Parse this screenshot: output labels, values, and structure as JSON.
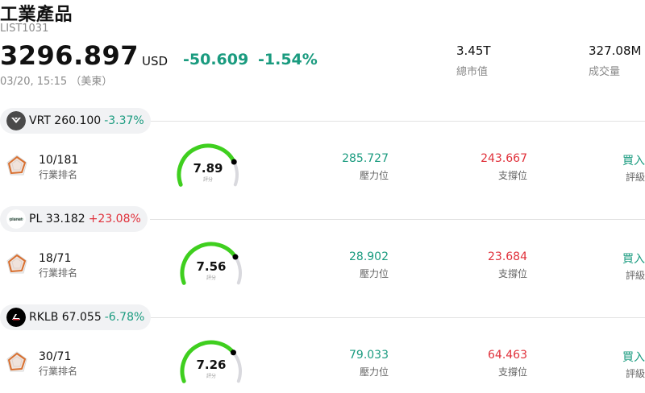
{
  "header": {
    "title": "工業產品",
    "code": "LIST1031",
    "price": "3296.897",
    "currency": "USD",
    "change": "-50.609",
    "change_pct": "-1.54%",
    "timestamp": "03/20, 15:15 （美東）",
    "market_cap_value": "3.45T",
    "market_cap_label": "總市值",
    "volume_value": "327.08M",
    "volume_label": "成交量"
  },
  "colors": {
    "down": "#1a9b7f",
    "up": "#e0303a",
    "gauge_fill": "#3fcf1f",
    "gauge_track": "#d9d9de",
    "radar_stroke": "#d86f2f"
  },
  "labels": {
    "rank": "行業排名",
    "score": "評分",
    "resistance": "壓力位",
    "support": "支撐位",
    "rating": "評級"
  },
  "stocks": [
    {
      "ticker": "VRT",
      "price": "260.100",
      "pct": "-3.37%",
      "logo": "vrt-logo-icon",
      "rank": "10/181",
      "score": "7.89",
      "score_value": 7.89,
      "resistance": "285.727",
      "support": "243.667",
      "rating": "買入"
    },
    {
      "ticker": "PL",
      "price": "33.182",
      "pct": "+23.08%",
      "logo": "planet-logo-icon",
      "rank": "18/71",
      "score": "7.56",
      "score_value": 7.56,
      "resistance": "28.902",
      "support": "23.684",
      "rating": "買入"
    },
    {
      "ticker": "RKLB",
      "price": "67.055",
      "pct": "-6.78%",
      "logo": "rocketlab-logo-icon",
      "rank": "30/71",
      "score": "7.26",
      "score_value": 7.26,
      "resistance": "79.033",
      "support": "64.463",
      "rating": "買入"
    }
  ]
}
